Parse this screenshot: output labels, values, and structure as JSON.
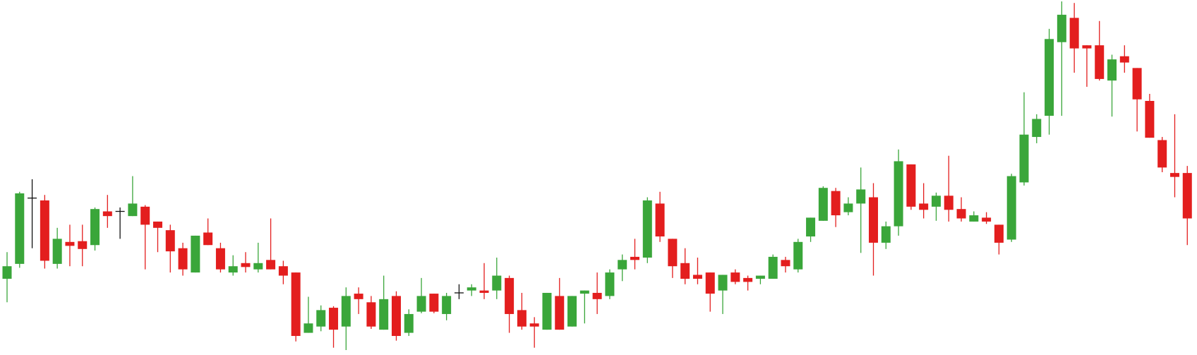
{
  "chart_data": {
    "type": "candlestick",
    "up_color": "#3aa63a",
    "down_color": "#e31e1e",
    "doji_color": "#111111",
    "open": [
      97,
      116,
      200,
      197,
      116,
      144,
      145,
      140,
      183,
      183,
      177,
      189,
      170,
      159,
      136,
      105,
      156,
      136,
      105,
      117,
      109,
      121,
      113,
      105,
      28,
      36,
      60,
      36,
      78,
      67,
      32,
      75,
      28,
      55,
      78,
      52,
      79,
      82,
      82,
      82,
      98,
      57,
      40,
      32,
      75,
      36,
      78,
      79,
      75,
      109,
      125,
      124,
      193,
      148,
      117,
      102,
      105,
      82,
      105,
      98,
      97,
      97,
      121,
      109,
      151,
      171,
      209,
      182,
      193,
      201,
      143,
      164,
      243,
      193,
      189,
      203,
      186,
      170,
      175,
      166,
      147,
      220,
      278,
      305,
      399,
      430,
      395,
      395,
      350,
      381,
      366,
      324,
      274,
      232,
      232
    ],
    "high": [
      131,
      208,
      224,
      204,
      162,
      166,
      166,
      188,
      204,
      188,
      228,
      191,
      170,
      166,
      143,
      152,
      174,
      143,
      127,
      131,
      143,
      174,
      120,
      105,
      74,
      63,
      62,
      86,
      86,
      75,
      101,
      81,
      58,
      98,
      78,
      79,
      90,
      90,
      117,
      124,
      101,
      79,
      48,
      79,
      98,
      75,
      82,
      105,
      109,
      128,
      148,
      201,
      208,
      148,
      136,
      124,
      105,
      102,
      109,
      101,
      101,
      128,
      125,
      148,
      175,
      215,
      213,
      201,
      239,
      219,
      170,
      262,
      243,
      219,
      207,
      254,
      201,
      183,
      182,
      166,
      231,
      335,
      307,
      416,
      451,
      449,
      395,
      426,
      383,
      395,
      366,
      333,
      278,
      307,
      241
    ],
    "low": [
      67,
      111,
      136,
      110,
      110,
      113,
      113,
      133,
      162,
      148,
      177,
      109,
      131,
      105,
      101,
      105,
      140,
      105,
      101,
      105,
      105,
      109,
      90,
      17,
      28,
      30,
      9,
      6,
      52,
      33,
      32,
      18,
      24,
      53,
      53,
      44,
      71,
      75,
      71,
      71,
      28,
      32,
      9,
      32,
      32,
      36,
      40,
      52,
      71,
      94,
      109,
      117,
      144,
      98,
      90,
      90,
      55,
      52,
      90,
      82,
      90,
      97,
      105,
      105,
      144,
      171,
      163,
      178,
      130,
      101,
      135,
      152,
      185,
      174,
      171,
      170,
      170,
      170,
      167,
      128,
      144,
      216,
      270,
      281,
      305,
      360,
      342,
      350,
      304,
      360,
      285,
      277,
      233,
      201,
      140
    ],
    "close": [
      113,
      206,
      200,
      120,
      148,
      139,
      135,
      186,
      177,
      183,
      193,
      166,
      162,
      132,
      109,
      152,
      140,
      109,
      113,
      112,
      117,
      109,
      101,
      24,
      40,
      57,
      32,
      75,
      71,
      36,
      71,
      24,
      52,
      75,
      55,
      75,
      79,
      86,
      79,
      101,
      52,
      36,
      36,
      79,
      32,
      75,
      82,
      71,
      105,
      121,
      121,
      197,
      151,
      113,
      97,
      97,
      78,
      102,
      93,
      93,
      101,
      125,
      113,
      144,
      175,
      213,
      178,
      193,
      211,
      143,
      164,
      247,
      189,
      185,
      203,
      185,
      174,
      178,
      170,
      143,
      228,
      281,
      301,
      403,
      434,
      391,
      391,
      352,
      377,
      373,
      326,
      277,
      239,
      227,
      174
    ]
  }
}
